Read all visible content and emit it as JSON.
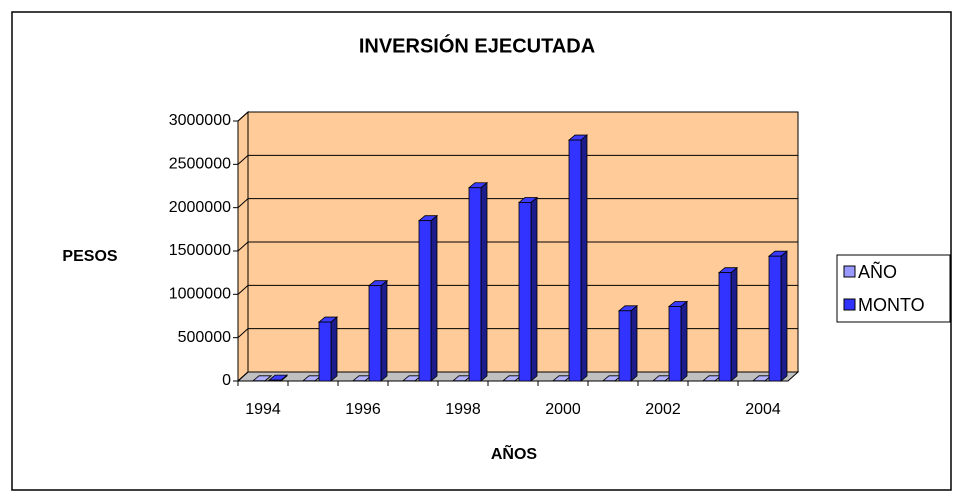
{
  "chart_data": {
    "type": "bar3d",
    "title": "INVERSIÓN EJECUTADA",
    "y_label": "PESOS",
    "x_label": "AÑOS",
    "categories": [
      "1994",
      null,
      "1996",
      null,
      "1998",
      null,
      "2000",
      null,
      "2002",
      null,
      "2004"
    ],
    "series": [
      {
        "name": "AÑO",
        "color": "#9999ff",
        "values": [
          1994,
          1995,
          1996,
          1997,
          1998,
          1999,
          2000,
          2001,
          2002,
          2003,
          2004
        ]
      },
      {
        "name": "MONTO",
        "color": "#3333ff",
        "values": [
          10000,
          680000,
          1100000,
          1850000,
          2230000,
          2060000,
          2780000,
          810000,
          860000,
          1250000,
          1440000
        ]
      }
    ],
    "ylim": [
      0,
      3000000
    ],
    "yticks": [
      0,
      500000,
      1000000,
      1500000,
      2000000,
      2500000,
      3000000
    ],
    "grid": true,
    "legend": "right",
    "wall_color": "#ffcc99"
  }
}
